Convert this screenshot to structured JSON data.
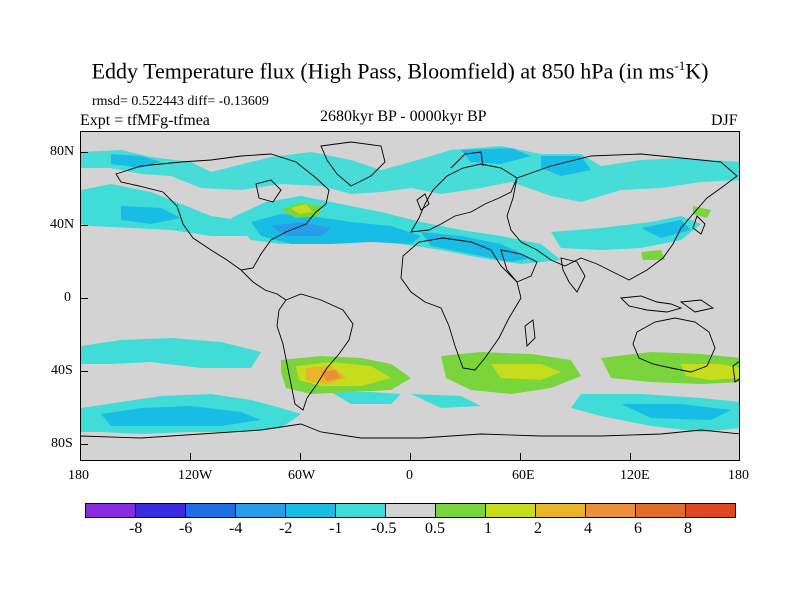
{
  "title": {
    "main": "Eddy Temperature flux (High Pass, Bloomfield) at 850 hPa (in ms",
    "sup": "-1",
    "tail": "K)"
  },
  "stats": "rmsd= 0.522443 diff= -0.13609",
  "experiment": "Expt = tfMFg-tfmea",
  "period": "2680kyr BP - 0000kyr BP",
  "season": "DJF",
  "lat_labels": [
    "80N",
    "40N",
    "0",
    "40S",
    "80S"
  ],
  "lon_labels": [
    "180",
    "120W",
    "60W",
    "0",
    "60E",
    "120E",
    "180"
  ],
  "colorbar": {
    "labels": [
      "-8",
      "-6",
      "-4",
      "-2",
      "-1",
      "-0.5",
      "0.5",
      "1",
      "2",
      "4",
      "6",
      "8"
    ],
    "colors": [
      "#8a2be2",
      "#3a2ae0",
      "#1e6ee6",
      "#2a9de8",
      "#18bde6",
      "#40dcd8",
      "#d3d3d3",
      "#7ad43c",
      "#c8dc1e",
      "#e8b42a",
      "#e8903a",
      "#e06e2a",
      "#e04622"
    ]
  }
}
